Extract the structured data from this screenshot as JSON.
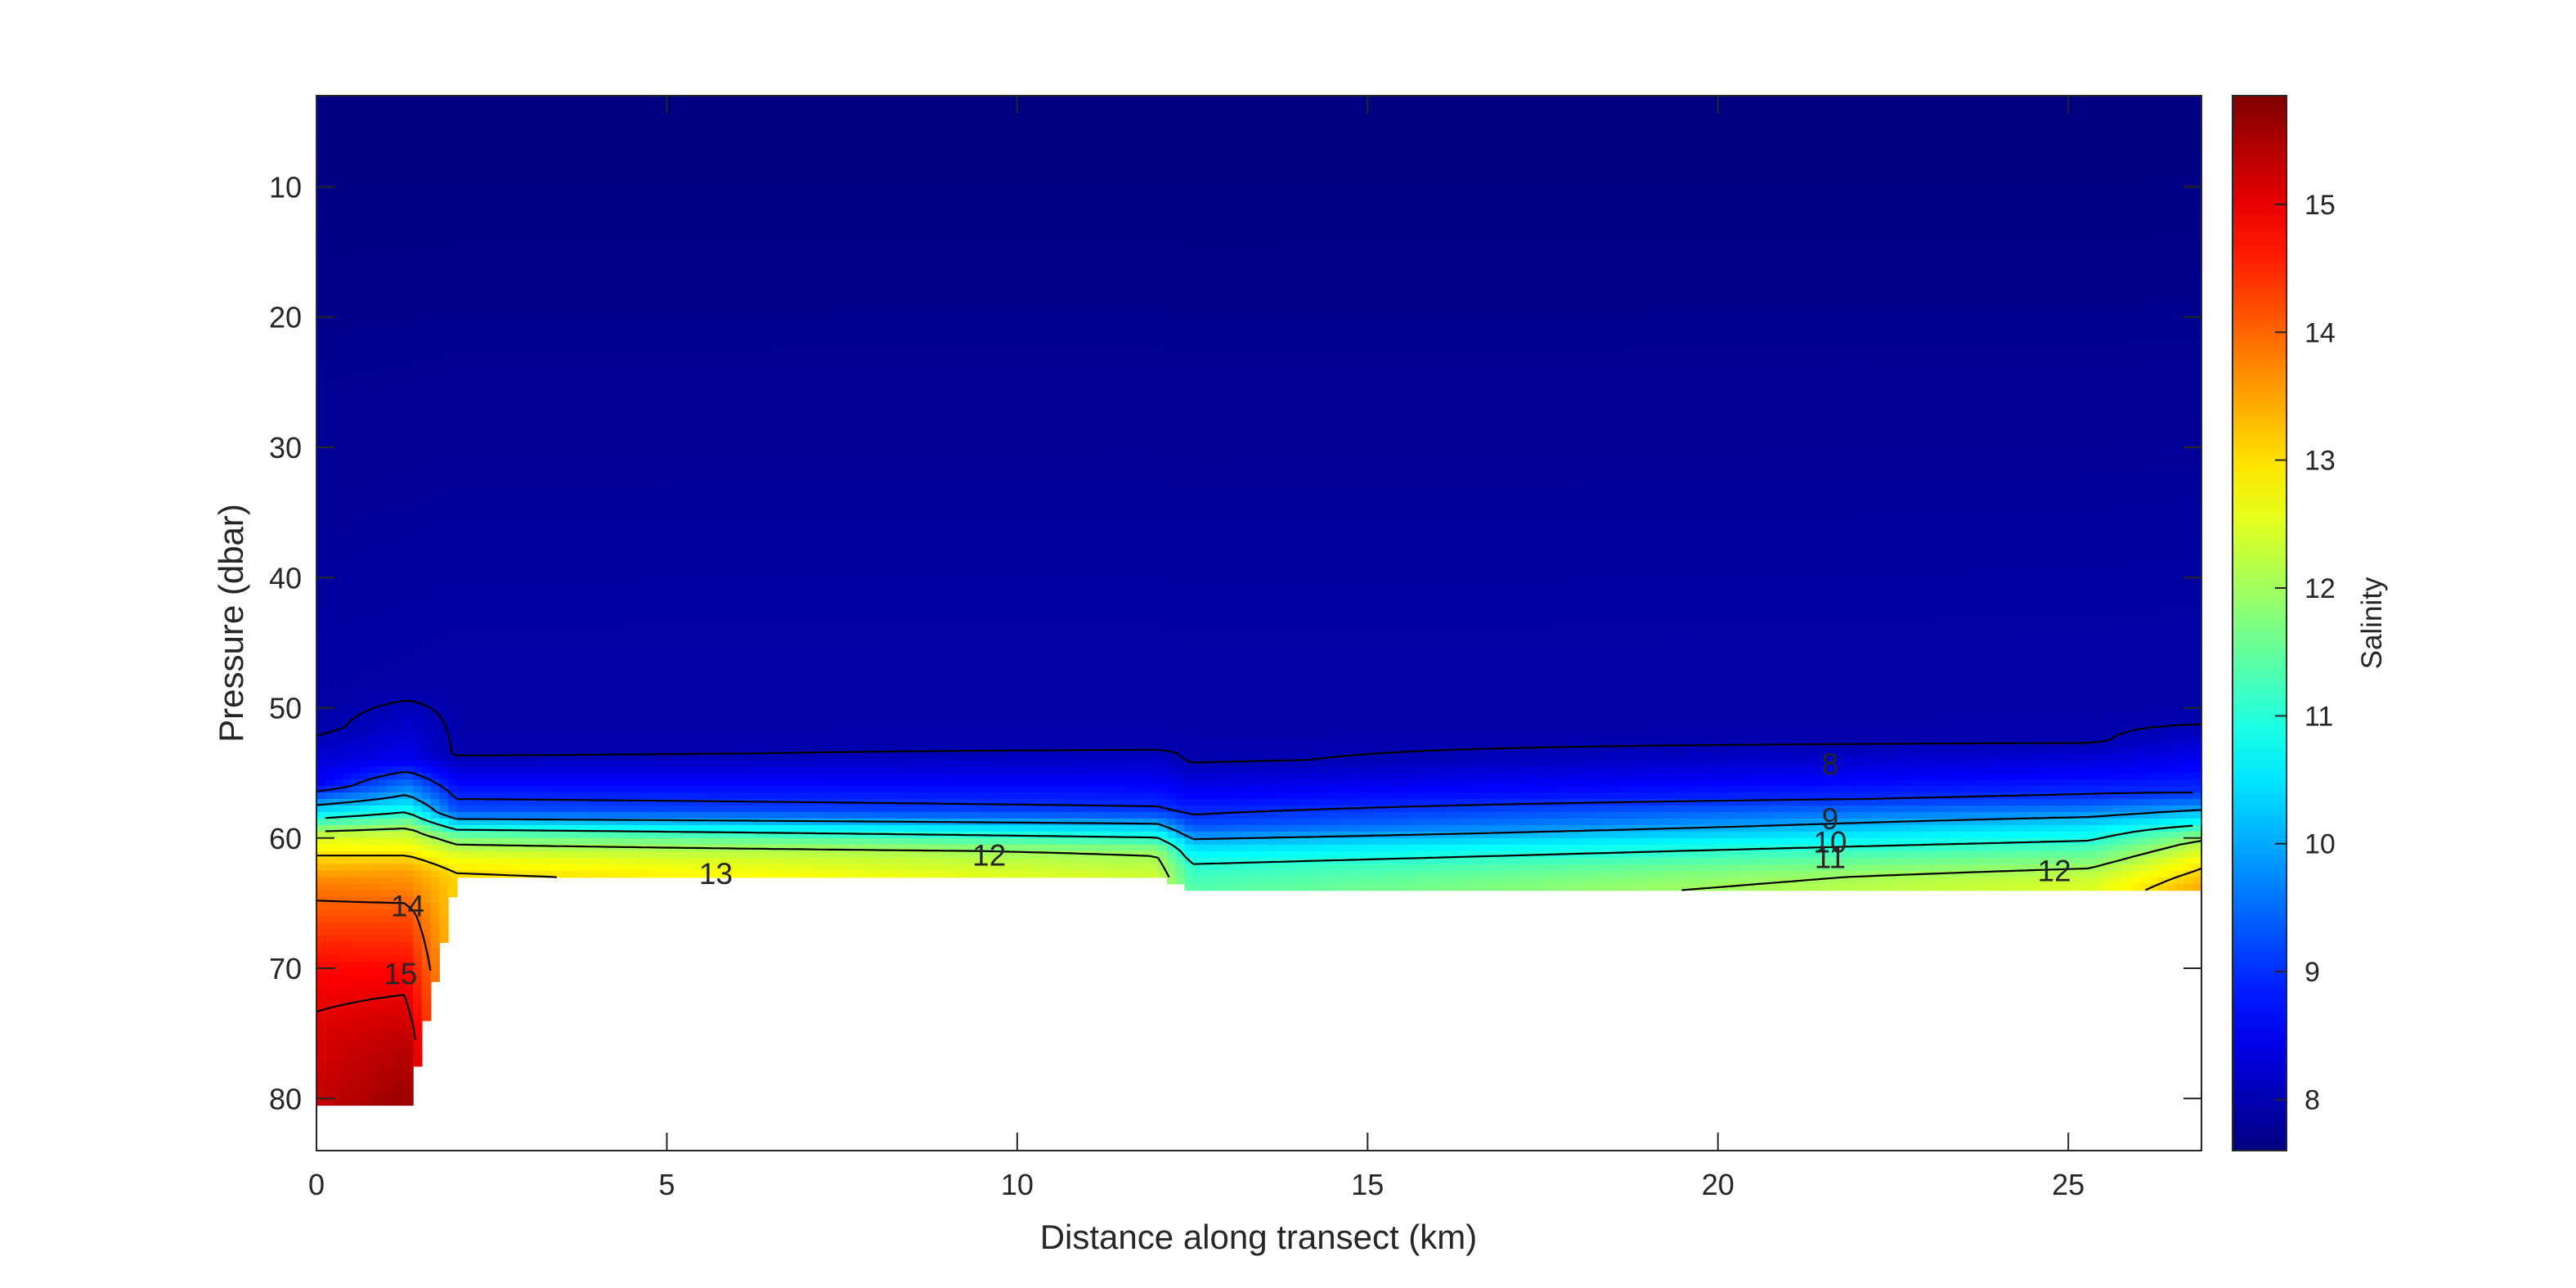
{
  "chart_data": {
    "type": "heatmap",
    "title": "",
    "xlabel": "Distance along transect (km)",
    "ylabel": "Pressure (dbar)",
    "colorbar_label": "Salinity",
    "xlim": [
      0,
      26.9
    ],
    "ylim": [
      3,
      84
    ],
    "y_reversed": true,
    "x_ticks": [
      "0",
      "5",
      "10",
      "15",
      "20",
      "25"
    ],
    "y_ticks": [
      "10",
      "20",
      "30",
      "40",
      "50",
      "60",
      "70",
      "80"
    ],
    "colorbar_range": [
      7.6,
      15.85
    ],
    "colorbar_ticks": [
      "8",
      "9",
      "10",
      "11",
      "12",
      "13",
      "14",
      "15"
    ],
    "colormap": "jet",
    "grid": false,
    "profiles": [
      {
        "x": 0,
        "bottom": 80.5,
        "points": [
          [
            3,
            7.6
          ],
          [
            51.5,
            7.9
          ],
          [
            56,
            8.6
          ],
          [
            58,
            10.5
          ],
          [
            60,
            12.5
          ],
          [
            63.5,
            13.8
          ],
          [
            70,
            14.8
          ],
          [
            75,
            15.1
          ],
          [
            80.5,
            15.3
          ]
        ]
      },
      {
        "x": 1.3,
        "bottom": 81,
        "points": [
          [
            3,
            7.6
          ],
          [
            48.5,
            7.9
          ],
          [
            54,
            8.5
          ],
          [
            57,
            10.2
          ],
          [
            59.5,
            12.2
          ],
          [
            62.5,
            13.5
          ],
          [
            66,
            14.2
          ],
          [
            71,
            14.9
          ],
          [
            76,
            15.4
          ],
          [
            81,
            15.7
          ]
        ]
      },
      {
        "x": 2.0,
        "bottom": 63,
        "points": [
          [
            3,
            7.6
          ],
          [
            53.5,
            7.95
          ],
          [
            58,
            9.3
          ],
          [
            59,
            10.6
          ],
          [
            60,
            11.7
          ],
          [
            61.5,
            12.6
          ],
          [
            63,
            13.1
          ]
        ]
      },
      {
        "x": 12.0,
        "bottom": 63,
        "points": [
          [
            3,
            7.6
          ],
          [
            53,
            7.95
          ],
          [
            58,
            9.1
          ],
          [
            59.5,
            10.6
          ],
          [
            61,
            11.9
          ],
          [
            63,
            12.4
          ]
        ]
      },
      {
        "x": 12.5,
        "bottom": 64,
        "points": [
          [
            3,
            7.6
          ],
          [
            54,
            7.95
          ],
          [
            59,
            9.2
          ],
          [
            60.5,
            10.3
          ],
          [
            62,
            11.0
          ],
          [
            64,
            11.4
          ]
        ]
      },
      {
        "x": 25.3,
        "bottom": 64,
        "points": [
          [
            3,
            7.6
          ],
          [
            52.5,
            7.95
          ],
          [
            57,
            9.1
          ],
          [
            59,
            10.4
          ],
          [
            61,
            11.4
          ],
          [
            63,
            12.3
          ],
          [
            64,
            12.5
          ]
        ]
      },
      {
        "x": 26.9,
        "bottom": 64,
        "points": [
          [
            3,
            7.6
          ],
          [
            51,
            7.95
          ],
          [
            56.5,
            9.0
          ],
          [
            58.5,
            10.5
          ],
          [
            59.5,
            11.5
          ],
          [
            60.5,
            12.2
          ],
          [
            62,
            12.9
          ],
          [
            64,
            13.5
          ]
        ]
      }
    ],
    "contour_labels": [
      {
        "text": "8",
        "x": 21.6,
        "y": 54.3
      },
      {
        "text": "9",
        "x": 21.6,
        "y": 58.5
      },
      {
        "text": "10",
        "x": 21.6,
        "y": 60.3
      },
      {
        "text": "11",
        "x": 21.6,
        "y": 61.5
      },
      {
        "text": "12",
        "x": 9.6,
        "y": 61.3
      },
      {
        "text": "12",
        "x": 24.8,
        "y": 62.5
      },
      {
        "text": "13",
        "x": 5.7,
        "y": 62.7
      },
      {
        "text": "14",
        "x": 1.3,
        "y": 65.2
      },
      {
        "text": "15",
        "x": 1.2,
        "y": 70.4
      }
    ]
  }
}
